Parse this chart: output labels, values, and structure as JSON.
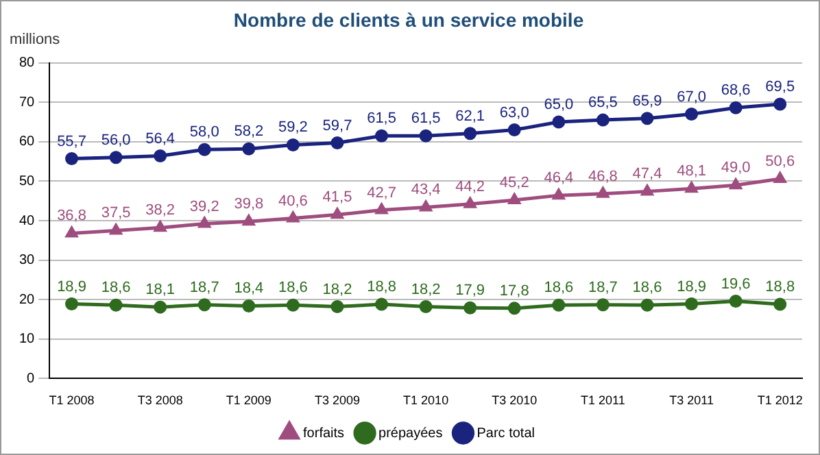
{
  "chart_data": {
    "type": "line",
    "title": "Nombre de clients à un service mobile",
    "ylabel": "millions",
    "categories": [
      "T1 2008",
      null,
      "T3 2008",
      null,
      "T1 2009",
      null,
      "T3 2009",
      null,
      "T1 2010",
      null,
      "T3 2010",
      null,
      "T1 2011",
      null,
      "T3 2011",
      null,
      "T1 2012"
    ],
    "ylim": [
      0,
      80
    ],
    "yticks": [
      0,
      10,
      20,
      30,
      40,
      50,
      60,
      70,
      80
    ],
    "grid": "y",
    "legend": "bottom",
    "series": [
      {
        "name": "forfaits",
        "color": "#9e4d7e",
        "marker": "triangle",
        "values": [
          36.8,
          37.5,
          38.2,
          39.2,
          39.8,
          40.6,
          41.5,
          42.7,
          43.4,
          44.2,
          45.2,
          46.4,
          46.8,
          47.4,
          48.1,
          49.0,
          50.6
        ],
        "value_labels": [
          "36,8",
          "37,5",
          "38,2",
          "39,2",
          "39,8",
          "40,6",
          "41,5",
          "42,7",
          "43,4",
          "44,2",
          "45,2",
          "46,4",
          "46,8",
          "47,4",
          "48,1",
          "49,0",
          "50,6"
        ]
      },
      {
        "name": "prépayées",
        "color": "#2e6b1e",
        "marker": "circle",
        "values": [
          18.9,
          18.6,
          18.1,
          18.7,
          18.4,
          18.6,
          18.2,
          18.8,
          18.2,
          17.9,
          17.8,
          18.6,
          18.7,
          18.6,
          18.9,
          19.6,
          18.8
        ],
        "value_labels": [
          "18,9",
          "18,6",
          "18,1",
          "18,7",
          "18,4",
          "18,6",
          "18,2",
          "18,8",
          "18,2",
          "17,9",
          "17,8",
          "18,6",
          "18,7",
          "18,6",
          "18,9",
          "19,6",
          "18,8"
        ]
      },
      {
        "name": "Parc total",
        "color": "#1a237e",
        "marker": "circle",
        "values": [
          55.7,
          56.0,
          56.4,
          58.0,
          58.2,
          59.2,
          59.7,
          61.5,
          61.5,
          62.1,
          63.0,
          65.0,
          65.5,
          65.9,
          67.0,
          68.6,
          69.5
        ],
        "value_labels": [
          "55,7",
          "56,0",
          "56,4",
          "58,0",
          "58,2",
          "59,2",
          "59,7",
          "61,5",
          "61,5",
          "62,1",
          "63,0",
          "65,0",
          "65,5",
          "65,9",
          "67,0",
          "68,6",
          "69,5"
        ]
      }
    ]
  }
}
